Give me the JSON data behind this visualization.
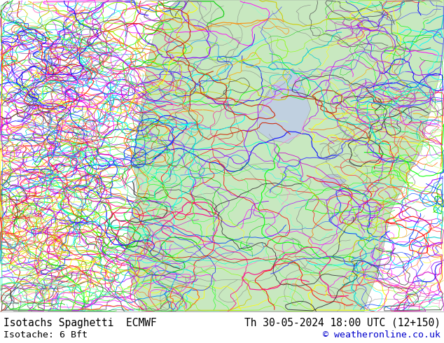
{
  "title_left": "Isotachs Spaghetti  ECMWF",
  "title_right": "Th 30-05-2024 18:00 UTC (12+150)",
  "subtitle_left": "Isotache: 6 Bft",
  "subtitle_right": "© weatheronline.co.uk",
  "land_green": "#c8e8c0",
  "land_green2": "#b0d8b0",
  "ocean_color": "#d8d8d8",
  "text_color": "#000000",
  "copyright_color": "#0000cc",
  "bottom_bg": "#ffffff",
  "fig_width": 6.34,
  "fig_height": 4.9,
  "dpi": 100,
  "font_size_title": 10.5,
  "font_size_sub": 9.5
}
